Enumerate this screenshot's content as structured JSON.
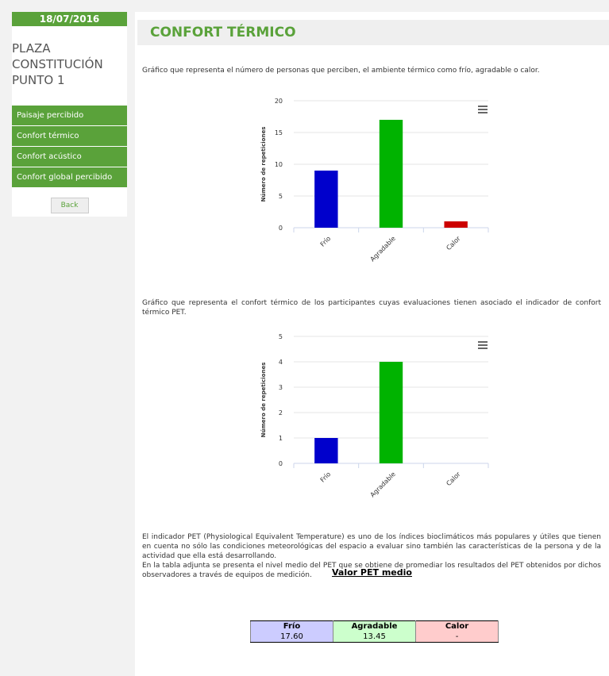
{
  "sidebar": {
    "date": "18/07/2016",
    "place": "PLAZA CONSTITUCIÓN PUNTO 1",
    "menu": [
      "Paisaje percibido",
      "Confort térmico",
      "Confort acústico",
      "Confort global percibido"
    ],
    "back": "Back"
  },
  "main": {
    "title": "CONFORT TÉRMICO",
    "intro1": "Gráfico que representa el número de personas que perciben, el ambiente térmico como frío, agradable o calor.",
    "intro2": "Gráfico que representa el confort térmico de los participantes cuyas evaluaciones tienen asociado el indicador de confort térmico PET.",
    "para1": "El indicador PET (Physiological Equivalent Temperature) es uno de los índices bioclimáticos más populares y útiles que tienen en cuenta no sólo las condiciones meteorológicas del espacio a evaluar sino también las características de la persona y de la actividad que ella está desarrollando.",
    "para2": "En la tabla adjunta se presenta el nivel medio del PET que se obtiene de promediar los resultados del PET obtenidos por dichos observadores a través de equipos de medición.",
    "table_title": "Valor PET medio"
  },
  "charts": [
    {
      "type": "bar",
      "y_label": "Número de repeticiones",
      "categories": [
        "Frío",
        "Agradable",
        "Calor"
      ],
      "values": [
        9,
        17,
        1
      ],
      "colors": [
        "#0000cc",
        "#00b300",
        "#cc0000"
      ],
      "ylim": [
        0,
        20
      ],
      "yticks": [
        0,
        5,
        10,
        15,
        20
      ]
    },
    {
      "type": "bar",
      "y_label": "Número de repeticiones",
      "categories": [
        "Frío",
        "Agradable",
        "Calor"
      ],
      "values": [
        1,
        4,
        0
      ],
      "colors": [
        "#0000cc",
        "#00b300",
        "#cc0000"
      ],
      "ylim": [
        0,
        5
      ],
      "yticks": [
        0,
        1,
        2,
        3,
        4,
        5
      ]
    }
  ],
  "table": {
    "header": [
      "Frío",
      "Agradable",
      "Calor"
    ],
    "rows": [
      [
        "17.60",
        "13.45",
        "-"
      ]
    ]
  }
}
